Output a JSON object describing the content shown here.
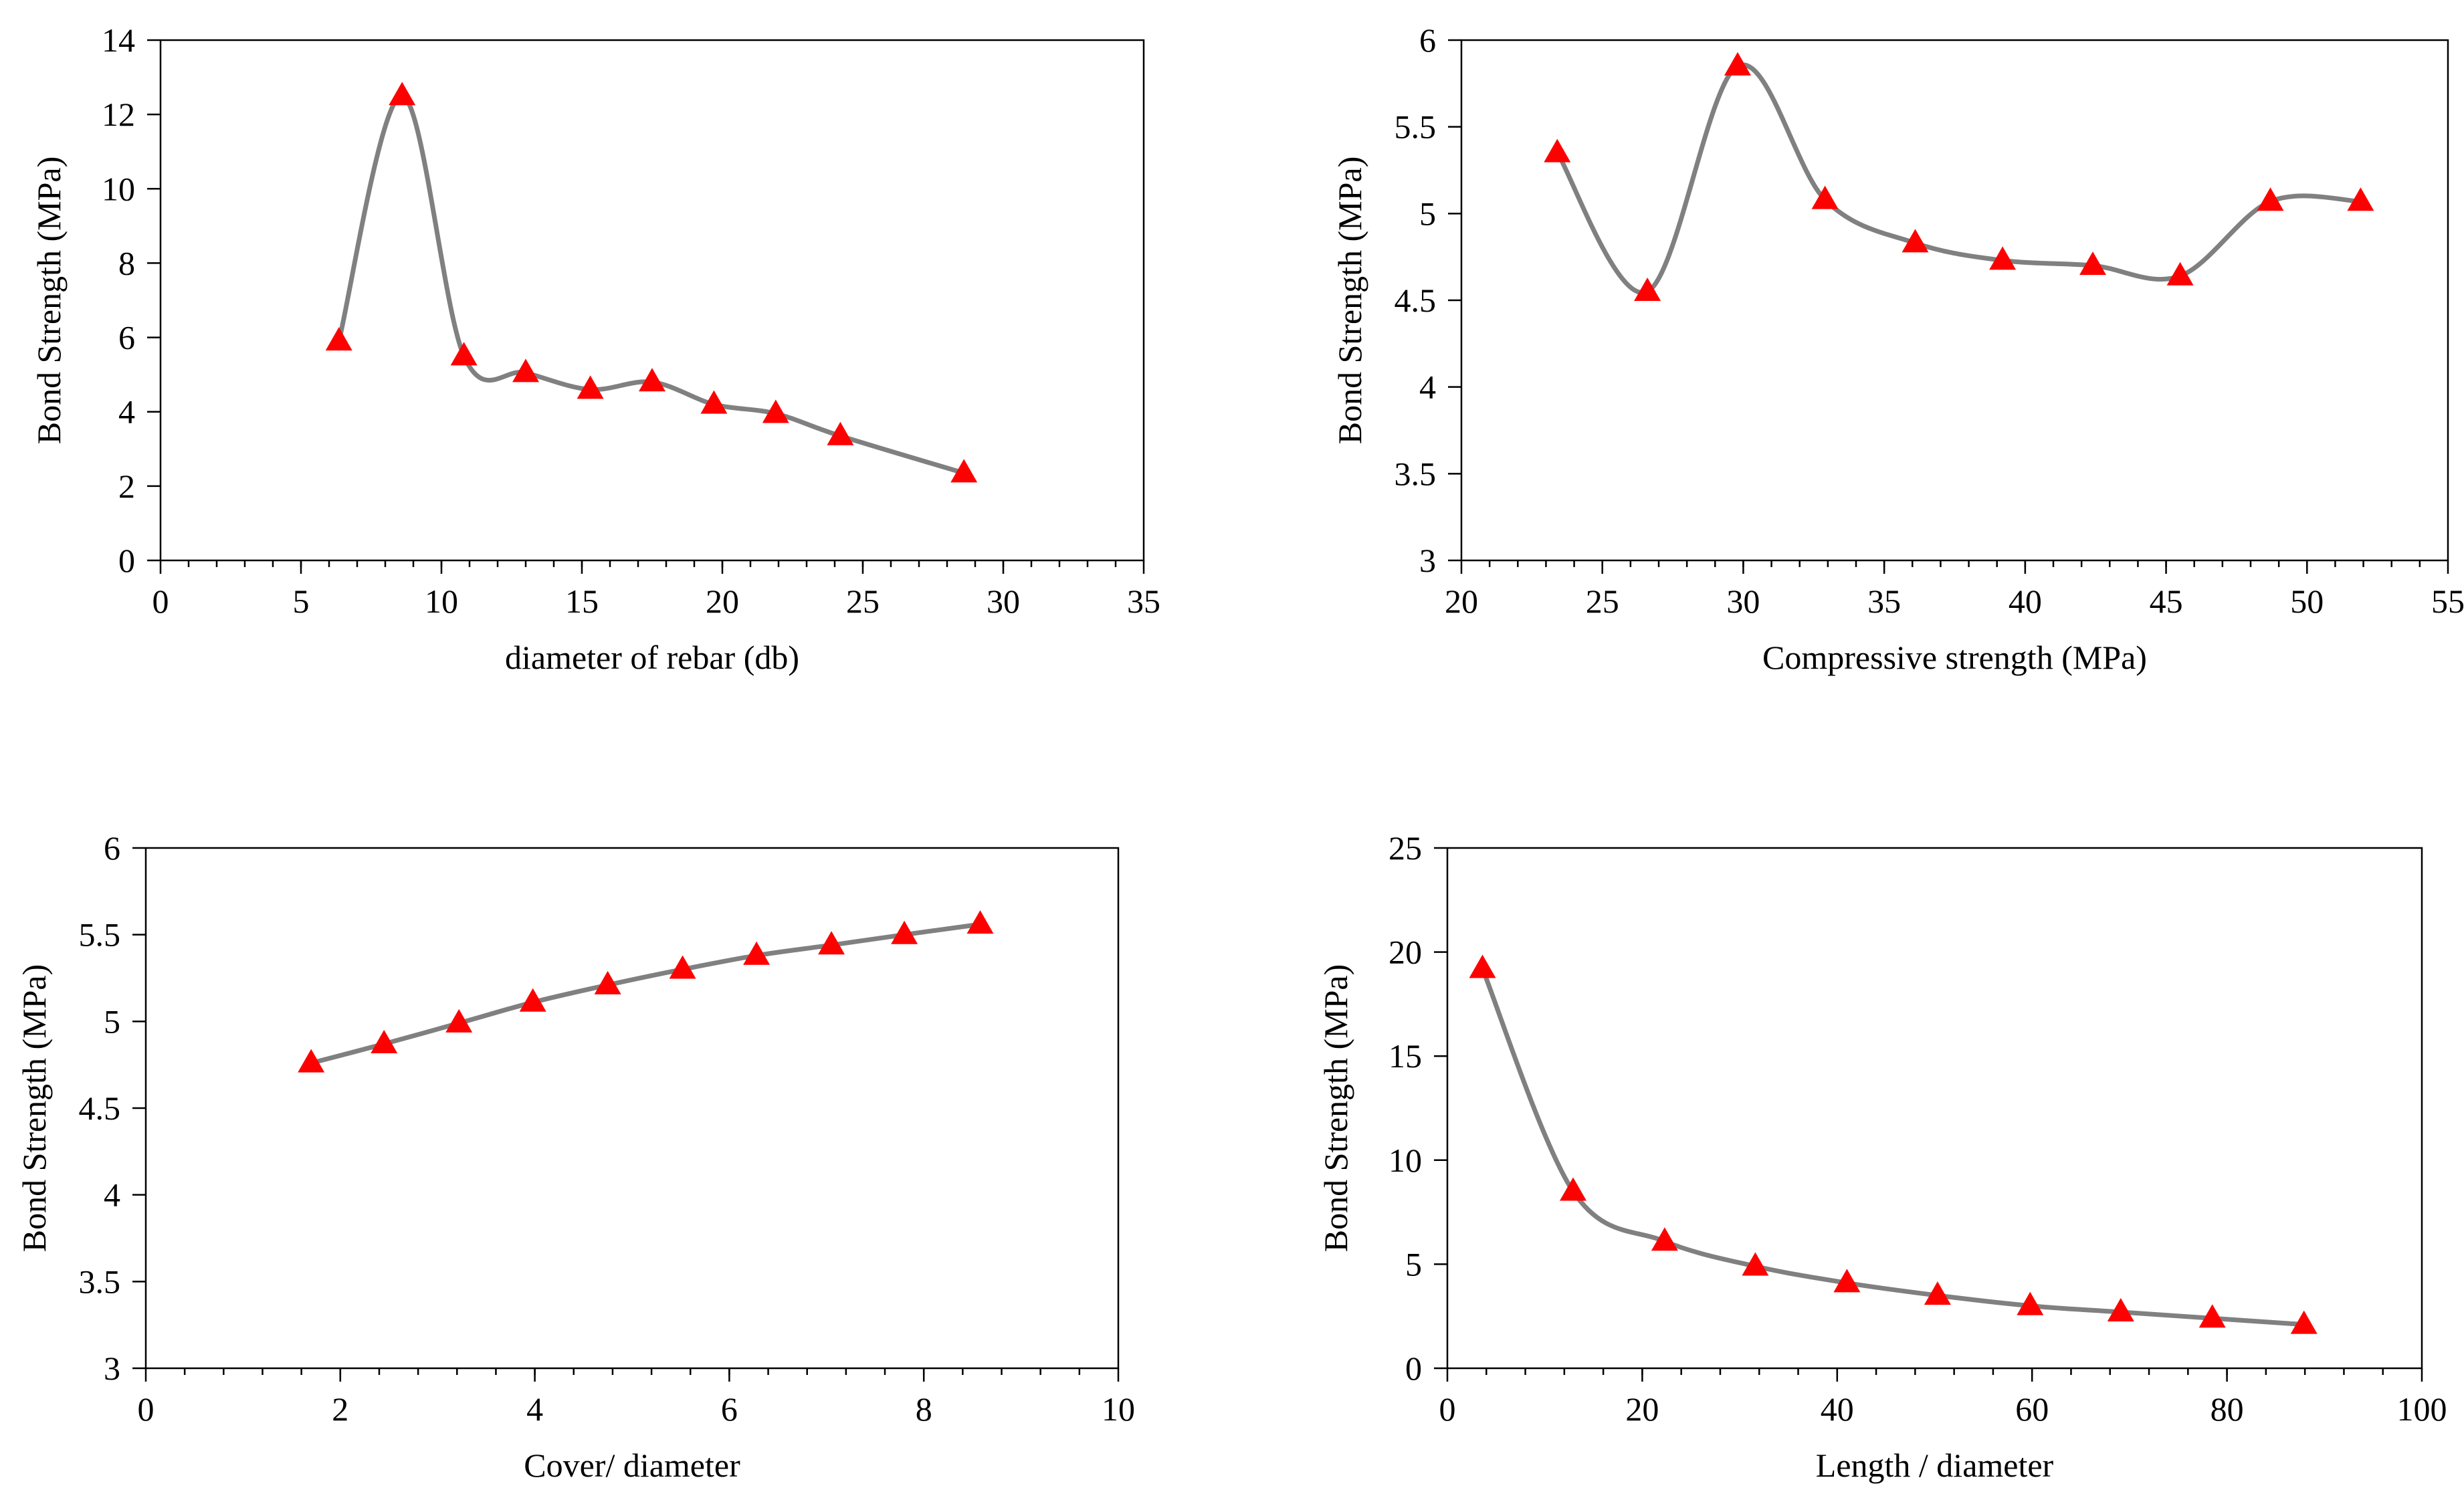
{
  "style": {
    "line_color": "#808080",
    "marker_color": "#ff0000",
    "axis_color": "#000000"
  },
  "chart_data": [
    {
      "type": "scatter",
      "marker": "triangle",
      "line": "smooth",
      "title": "",
      "xlabel": "diameter of rebar (db)",
      "ylabel": "Bond Strength (MPa)",
      "xlim": [
        0,
        35
      ],
      "ylim": [
        0,
        14
      ],
      "x_major": 5,
      "x_minor": 1,
      "y_major": 2,
      "xticks": [
        "0",
        "5",
        "10",
        "15",
        "20",
        "25",
        "30",
        "35"
      ],
      "yticks": [
        "0",
        "2",
        "4",
        "6",
        "8",
        "10",
        "12",
        "14"
      ],
      "x": [
        6.35,
        8.6,
        10.8,
        13.0,
        15.3,
        17.5,
        19.7,
        21.9,
        24.2,
        28.6
      ],
      "y": [
        5.9,
        12.5,
        5.5,
        5.05,
        4.6,
        4.8,
        4.2,
        3.95,
        3.35,
        2.35
      ]
    },
    {
      "type": "scatter",
      "marker": "triangle",
      "line": "smooth",
      "title": "",
      "xlabel": "Compressive strength (MPa)",
      "ylabel": "Bond Strength (MPa)",
      "xlim": [
        20,
        55
      ],
      "ylim": [
        3,
        6
      ],
      "x_major": 5,
      "x_minor": 1,
      "y_major": 0.5,
      "xticks": [
        "20",
        "25",
        "30",
        "35",
        "40",
        "45",
        "50",
        "55"
      ],
      "yticks": [
        "3",
        "3.5",
        "4",
        "4.5",
        "5",
        "5.5",
        "6"
      ],
      "x": [
        23.4,
        26.6,
        29.8,
        32.9,
        36.1,
        39.2,
        42.4,
        45.5,
        48.7,
        51.9
      ],
      "y": [
        5.35,
        4.55,
        5.85,
        5.08,
        4.83,
        4.73,
        4.7,
        4.64,
        5.07,
        5.07
      ]
    },
    {
      "type": "scatter",
      "marker": "triangle",
      "line": "smooth",
      "title": "",
      "xlabel": "Cover/ diameter",
      "ylabel": "Bond Strength (MPa)",
      "xlim": [
        0,
        10
      ],
      "ylim": [
        3,
        6
      ],
      "x_major": 2,
      "x_minor": 0.4,
      "y_major": 0.5,
      "xticks": [
        "0",
        "2",
        "4",
        "6",
        "8",
        "10"
      ],
      "yticks": [
        "3",
        "3.5",
        "4",
        "4.5",
        "5",
        "5.5",
        "6"
      ],
      "x": [
        1.7,
        2.45,
        3.22,
        3.98,
        4.75,
        5.52,
        6.28,
        7.05,
        7.8,
        8.58
      ],
      "y": [
        4.76,
        4.87,
        4.99,
        5.11,
        5.21,
        5.3,
        5.38,
        5.44,
        5.5,
        5.56
      ]
    },
    {
      "type": "scatter",
      "marker": "triangle",
      "line": "smooth",
      "title": "",
      "xlabel": "Length / diameter",
      "ylabel": "Bond Strength (MPa)",
      "xlim": [
        0,
        100
      ],
      "ylim": [
        0,
        25
      ],
      "x_major": 20,
      "x_minor": 4,
      "y_major": 5,
      "xticks": [
        "0",
        "20",
        "40",
        "60",
        "80",
        "100"
      ],
      "yticks": [
        "0",
        "5",
        "10",
        "15",
        "20",
        "25"
      ],
      "x": [
        3.6,
        12.9,
        22.3,
        31.6,
        41.0,
        50.3,
        59.8,
        69.1,
        78.5,
        87.9
      ],
      "y": [
        19.2,
        8.5,
        6.1,
        4.9,
        4.1,
        3.5,
        3.0,
        2.7,
        2.4,
        2.1
      ]
    }
  ]
}
